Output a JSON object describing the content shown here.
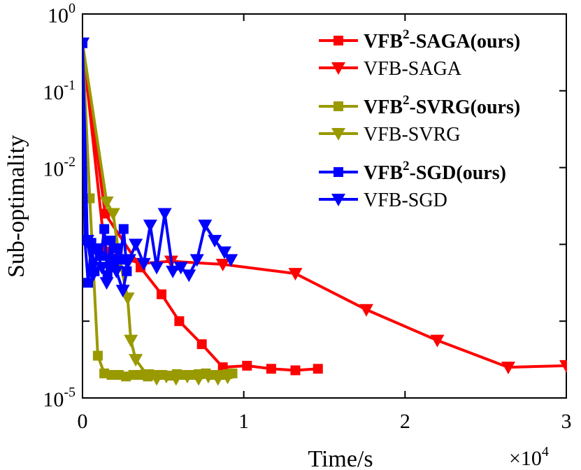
{
  "chart_data": {
    "type": "line",
    "xlabel": "Time/s",
    "ylabel": "Sub-optimality",
    "x_multiplier_label": {
      "times": "×",
      "base": "10",
      "exp": "4"
    },
    "xlim": [
      0,
      30000
    ],
    "ylim_log10": [
      -5,
      0
    ],
    "x_ticks": [
      0,
      10000,
      20000,
      30000
    ],
    "x_tick_labels": [
      "0",
      "1",
      "2",
      "3"
    ],
    "y_ticks_log10": [
      0,
      -1,
      -2,
      -5
    ],
    "y_tick_labels": [
      {
        "base": "10",
        "exp": "0"
      },
      {
        "base": "10",
        "exp": "-1"
      },
      {
        "base": "10",
        "exp": "-2"
      },
      {
        "base": "10",
        "exp": "-5"
      }
    ],
    "legend_position": "top-right",
    "series": [
      {
        "name_main": "VFB",
        "name_sup": "2",
        "name_rest": "-SAGA(ours)",
        "bold": true,
        "color": "#ff0000",
        "marker": "square",
        "x": [
          0,
          1400,
          3600,
          4900,
          6000,
          7400,
          8700,
          10200,
          11700,
          13200,
          14600
        ],
        "log10y": [
          -0.38,
          -2.6,
          -3.3,
          -3.65,
          -4.0,
          -4.3,
          -4.6,
          -4.58,
          -4.62,
          -4.64,
          -4.62
        ]
      },
      {
        "name_main": "VFB-SAGA",
        "name_sup": "",
        "name_rest": "",
        "bold": false,
        "color": "#ff0000",
        "marker": "triangle-down",
        "x": [
          0,
          1400,
          3600,
          5500,
          8700,
          13200,
          17600,
          22000,
          26400,
          30000
        ],
        "log10y": [
          -0.38,
          -3.1,
          -3.25,
          -3.22,
          -3.26,
          -3.38,
          -3.85,
          -4.25,
          -4.6,
          -4.58
        ]
      },
      {
        "name_main": "VFB",
        "name_sup": "2",
        "name_rest": "-SVRG(ours)",
        "bold": true,
        "color": "#999900",
        "marker": "square",
        "x": [
          0,
          450,
          950,
          1350,
          1800,
          2250,
          2700,
          3150,
          3600,
          4050,
          4500,
          4950,
          5400,
          5850,
          6300,
          6750,
          7200,
          7650,
          8100,
          8550,
          9000,
          9300
        ],
        "log10y": [
          -0.38,
          -2.4,
          -4.45,
          -4.68,
          -4.7,
          -4.7,
          -4.72,
          -4.7,
          -4.7,
          -4.72,
          -4.7,
          -4.7,
          -4.71,
          -4.69,
          -4.7,
          -4.7,
          -4.69,
          -4.68,
          -4.7,
          -4.7,
          -4.69,
          -4.68
        ],
        "markers_x": [
          450,
          950,
          1350,
          1800,
          2250,
          2700,
          3150,
          3600,
          4050,
          4500,
          4950,
          5400,
          5850,
          6300,
          6750,
          7200,
          7650,
          8100,
          8550,
          9000,
          9300
        ],
        "markers_log10y": [
          -2.4,
          -4.45,
          -4.68,
          -4.7,
          -4.7,
          -4.72,
          -4.7,
          -4.7,
          -4.72,
          -4.7,
          -4.7,
          -4.71,
          -4.69,
          -4.7,
          -4.7,
          -4.69,
          -4.68,
          -4.7,
          -4.7,
          -4.69,
          -4.68
        ]
      },
      {
        "name_main": "VFB-SVRG",
        "name_sup": "",
        "name_rest": "",
        "bold": false,
        "color": "#999900",
        "marker": "triangle-down",
        "x": [
          0,
          1500,
          1900,
          2300,
          2800,
          3000,
          3300,
          4000,
          4600,
          5200,
          5800,
          6500,
          7200,
          7800,
          8400,
          9000
        ],
        "log10y": [
          -0.38,
          -2.45,
          -2.6,
          -3.2,
          -3.7,
          -4.25,
          -4.5,
          -4.7,
          -4.75,
          -4.72,
          -4.75,
          -4.72,
          -4.75,
          -4.72,
          -4.75,
          -4.73
        ]
      },
      {
        "name_main": "VFB",
        "name_sup": "2",
        "name_rest": "-SGD(ours)",
        "bold": true,
        "color": "#0000ff",
        "marker": "square",
        "x": [
          0,
          150,
          350,
          550,
          750,
          950,
          1150,
          1350,
          1550,
          1750,
          1950,
          2150,
          2350,
          2550,
          2750
        ],
        "log10y": [
          -0.38,
          -2.95,
          -3.5,
          -2.98,
          -3.35,
          -3.05,
          -3.15,
          -2.8,
          -3.4,
          -2.95,
          -3.3,
          -3.05,
          -3.2,
          -2.8,
          -3.35
        ]
      },
      {
        "name_main": "VFB-SGD",
        "name_sup": "",
        "name_rest": "",
        "bold": false,
        "color": "#0000ff",
        "marker": "triangle-down",
        "x": [
          0,
          300,
          650,
          900,
          1200,
          1500,
          1800,
          2100,
          2500,
          2900,
          3300,
          3800,
          4200,
          4600,
          5100,
          5600,
          6100,
          6600,
          7100,
          7600,
          8200,
          8800,
          9200
        ],
        "log10y": [
          -0.38,
          -2.95,
          -3.4,
          -3.1,
          -3.3,
          -3.5,
          -3.2,
          -3.35,
          -3.6,
          -3.2,
          -3.0,
          -3.25,
          -2.75,
          -3.3,
          -2.6,
          -3.35,
          -3.3,
          -3.4,
          -3.2,
          -2.75,
          -2.95,
          -3.1,
          -3.2
        ]
      }
    ]
  }
}
